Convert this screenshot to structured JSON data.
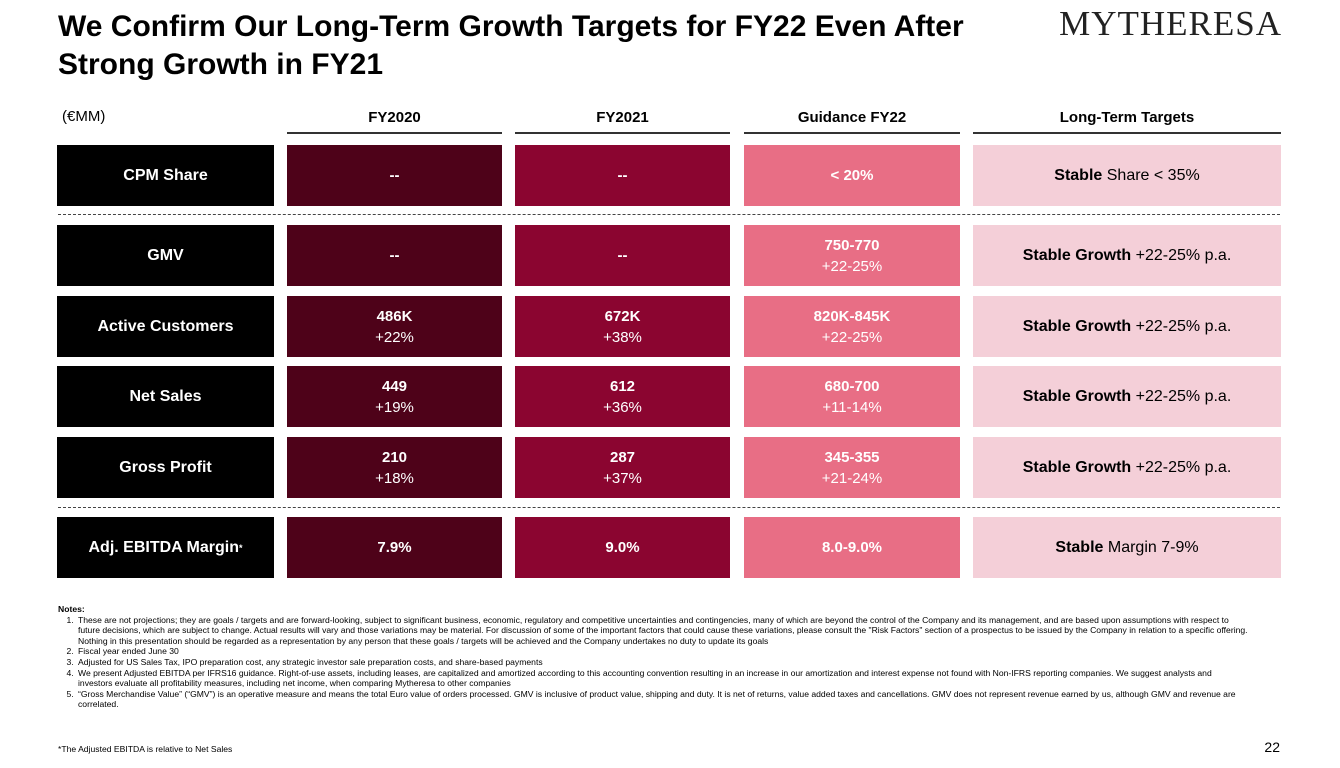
{
  "header": {
    "title": "We Confirm Our Long-Term Growth Targets for FY22 Even After Strong Growth in FY21",
    "logo": "MYTHERESA"
  },
  "table": {
    "unit": "(€MM)",
    "columns": [
      "FY2020",
      "FY2021",
      "Guidance FY22",
      "Long-Term Targets"
    ],
    "rows": [
      {
        "label": "CPM Share",
        "fy2020": {
          "main": "--",
          "growth": ""
        },
        "fy2021": {
          "main": "--",
          "growth": ""
        },
        "guidance": {
          "main": "< 20%",
          "growth": ""
        },
        "lt": {
          "strong": "Stable",
          "rest": " Share < 35%"
        }
      },
      {
        "label": "GMV",
        "fy2020": {
          "main": "--",
          "growth": ""
        },
        "fy2021": {
          "main": "--",
          "growth": ""
        },
        "guidance": {
          "main": "750-770",
          "growth": "+22-25%"
        },
        "lt": {
          "strong": "Stable Growth",
          "rest": " +22-25% p.a."
        }
      },
      {
        "label": "Active Customers",
        "fy2020": {
          "main": "486K",
          "growth": "+22%"
        },
        "fy2021": {
          "main": "672K",
          "growth": "+38%"
        },
        "guidance": {
          "main": "820K-845K",
          "growth": "+22-25%"
        },
        "lt": {
          "strong": "Stable Growth",
          "rest": " +22-25% p.a."
        }
      },
      {
        "label": "Net Sales",
        "fy2020": {
          "main": "449",
          "growth": "+19%"
        },
        "fy2021": {
          "main": "612",
          "growth": "+36%"
        },
        "guidance": {
          "main": "680-700",
          "growth": "+11-14%"
        },
        "lt": {
          "strong": "Stable Growth",
          "rest": " +22-25% p.a."
        }
      },
      {
        "label": "Gross Profit",
        "fy2020": {
          "main": "210",
          "growth": "+18%"
        },
        "fy2021": {
          "main": "287",
          "growth": "+37%"
        },
        "guidance": {
          "main": "345-355",
          "growth": "+21-24%"
        },
        "lt": {
          "strong": "Stable Growth",
          "rest": " +22-25% p.a."
        }
      },
      {
        "label": "Adj. EBITDA Margin",
        "label_sup": "*",
        "fy2020": {
          "main": "7.9%",
          "growth": ""
        },
        "fy2021": {
          "main": "9.0%",
          "growth": ""
        },
        "guidance": {
          "main": "8.0-9.0%",
          "growth": ""
        },
        "lt": {
          "strong": "Stable",
          "rest": " Margin 7-9%"
        }
      }
    ]
  },
  "notes": {
    "heading": "Notes:",
    "items": [
      "These are not projections; they are goals / targets and are forward-looking, subject to significant business, economic, regulatory and competitive uncertainties and contingencies, many of which are beyond the control of the Company and its management, and are based upon assumptions with respect to future decisions, which are subject to change. Actual results will vary and those variations may be material. For discussion of some of the important factors that could cause these variations, please consult the \"Risk Factors\" section of a prospectus to be issued by the Company in relation to a specific offering. Nothing in this presentation should be regarded as a representation by any person that these goals / targets will be achieved and the Company undertakes no duty to update its goals",
      "Fiscal year ended June 30",
      "Adjusted for US Sales Tax, IPO preparation cost, any strategic investor sale preparation costs, and share-based payments",
      "We present Adjusted EBITDA per IFRS16 guidance. Right-of-use assets, including leases, are capitalized and amortized according to this accounting convention resulting in an increase in our amortization and interest expense not found with Non-IFRS reporting companies. We suggest analysts and investors evaluate all profitability measures, including net income, when comparing Mytheresa to other companies",
      "“Gross Merchandise Value” (“GMV”) is an operative measure and means the total Euro value of orders processed. GMV is inclusive of product value, shipping and duty. It is net of returns, value added taxes and cancellations. GMV does not represent revenue earned by us, although GMV and revenue are correlated."
    ]
  },
  "footnote": "*The Adjusted EBITDA is relative to Net Sales",
  "page_number": "22",
  "colors": {
    "row_label_bg": "#000000",
    "fy2020_bg": "#4e0219",
    "fy2021_bg": "#8b0530",
    "guidance_bg": "#e86e85",
    "long_term_bg": "#f4cfd8"
  }
}
